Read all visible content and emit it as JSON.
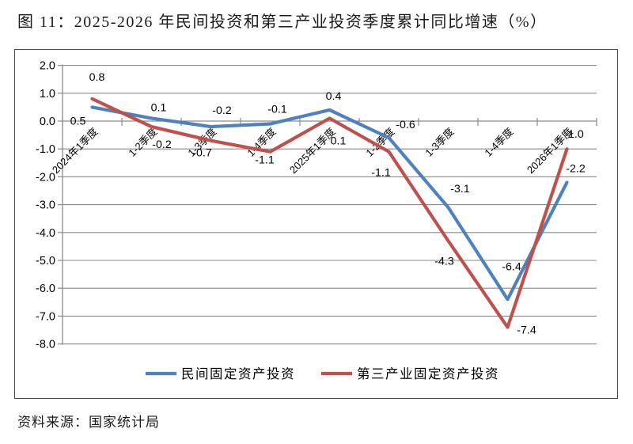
{
  "figure": {
    "title": "图 11：2025-2026 年民间投资和第三产业投资季度累计同比增速（%）",
    "source": "资料来源：国家统计局"
  },
  "chart_data": {
    "type": "line",
    "title": "2025-2026 年民间投资和第三产业投资季度累计同比增速（%）",
    "categories": [
      "2024年1季度",
      "1-2季度",
      "1-3季度",
      "1-4季度",
      "2025年1季度",
      "1-2季度",
      "1-3季度",
      "1-4季度",
      "2026年1季度"
    ],
    "series": [
      {
        "name": "民间固定资产投资",
        "color": "#4F81BD",
        "values": [
          0.5,
          0.1,
          -0.2,
          -0.1,
          0.4,
          -0.6,
          -3.1,
          -6.4,
          -2.2
        ],
        "label_offsets": [
          [
            -18,
            17
          ],
          [
            9,
            -14
          ],
          [
            14,
            -21
          ],
          [
            9,
            -19
          ],
          [
            5,
            -18
          ],
          [
            21,
            -17
          ],
          [
            15,
            -24
          ],
          [
            5,
            -42
          ],
          [
            11,
            -18
          ]
        ]
      },
      {
        "name": "第三产业固定资产投资",
        "color": "#C0504D",
        "values": [
          0.8,
          -0.2,
          -0.7,
          -1.1,
          0.1,
          -1.1,
          -4.3,
          -7.4,
          -1.0
        ],
        "label_offsets": [
          [
            6,
            -28
          ],
          [
            13,
            22
          ],
          [
            -11,
            15
          ],
          [
            -7,
            10
          ],
          [
            11,
            28
          ],
          [
            -10,
            26
          ],
          [
            -5,
            25
          ],
          [
            24,
            3
          ],
          [
            9,
            -19
          ]
        ]
      }
    ],
    "ylim": [
      -8,
      2
    ],
    "ytick_step": 1.0,
    "ytick_labels": [
      "2.0",
      "1.0",
      "0.0",
      "-1.0",
      "-2.0",
      "-3.0",
      "-4.0",
      "-5.0",
      "-6.0",
      "-7.0",
      "-8.0"
    ],
    "grid": true,
    "data_labels": true,
    "legend_position": "bottom",
    "gridline_color": "#8A8A8A",
    "axis_color": "#8A8A8A",
    "label_color": "#000000"
  }
}
